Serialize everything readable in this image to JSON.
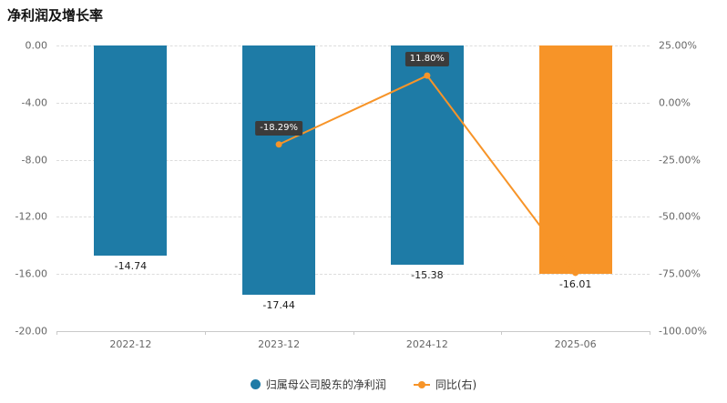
{
  "chart_data": {
    "type": "bar+line",
    "title": "净利润及增长率",
    "categories": [
      "2022-12",
      "2023-12",
      "2024-12",
      "2025-06"
    ],
    "bar_series": {
      "name": "归属母公司股东的净利润",
      "values": [
        -14.74,
        -17.44,
        -15.38,
        -16.01
      ],
      "labels": [
        "-14.74",
        "-17.44",
        "-15.38",
        "-16.01"
      ],
      "colors": [
        "#1e7ba6",
        "#1e7ba6",
        "#1e7ba6",
        "#f79428"
      ]
    },
    "line_series": {
      "name": "同比(右)",
      "color": "#f79428",
      "points": [
        {
          "category": "2023-12",
          "value": -18.29,
          "label": "-18.29%"
        },
        {
          "category": "2024-12",
          "value": 11.8,
          "label": "11.80%"
        },
        {
          "category": "2025-06",
          "value": -74.5,
          "label": null
        }
      ]
    },
    "left_axis": {
      "min": -20,
      "max": 0,
      "tick_values": [
        0,
        -4,
        -8,
        -12,
        -16,
        -20
      ],
      "tick_labels": [
        "0.00",
        "-4.00",
        "-8.00",
        "-12.00",
        "-16.00",
        "-20.00"
      ]
    },
    "right_axis": {
      "min": -100,
      "max": 25,
      "tick_values": [
        25,
        0,
        -25,
        -50,
        -75,
        -100
      ],
      "tick_labels": [
        "25.00%",
        "0.00%",
        "-25.00%",
        "-50.00%",
        "-75.00%",
        "-100.00%"
      ]
    },
    "legend": [
      {
        "label": "归属母公司股东的净利润",
        "marker": "circle",
        "color": "#1e7ba6"
      },
      {
        "label": "同比(右)",
        "marker": "line-dot",
        "color": "#f79428"
      }
    ],
    "grid": true,
    "legend_position": "bottom"
  }
}
